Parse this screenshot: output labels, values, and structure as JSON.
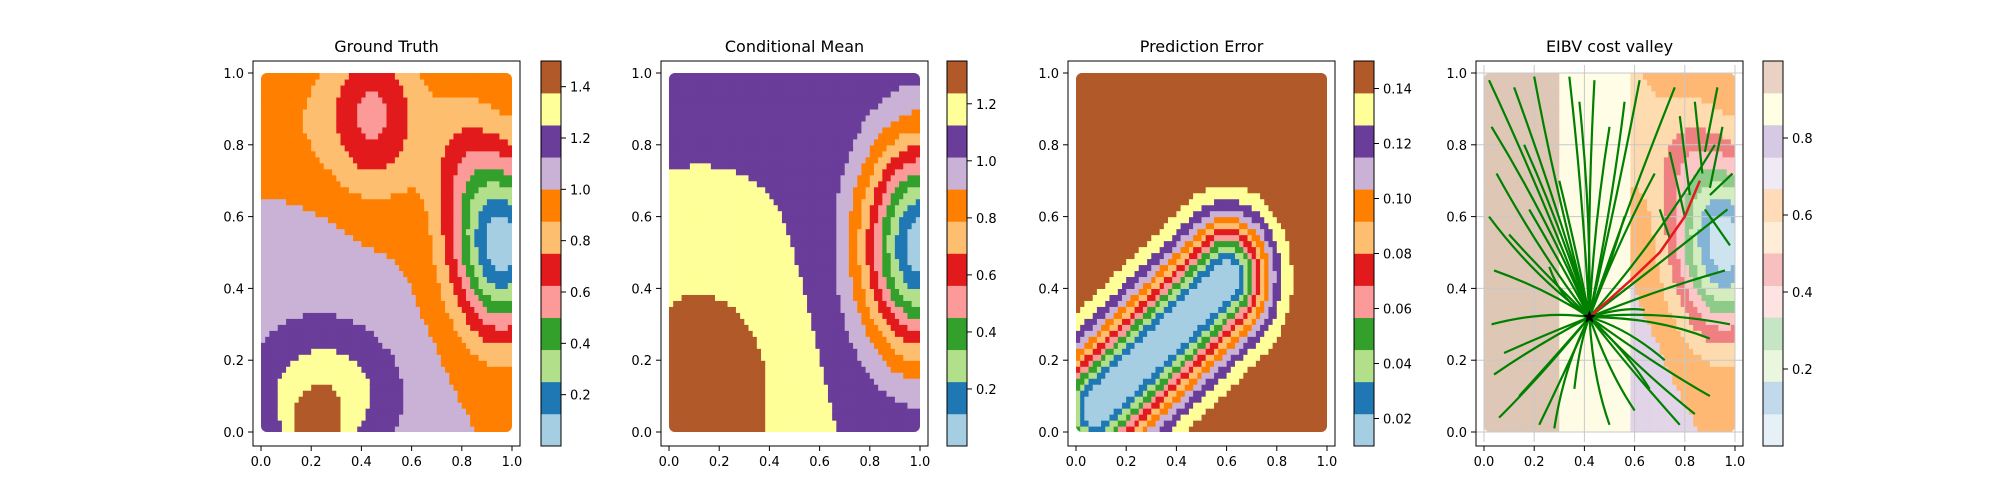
{
  "figure": {
    "background": "#ffffff",
    "palette": [
      "#a6cee3",
      "#1f78b4",
      "#b2df8a",
      "#33a02c",
      "#fb9a99",
      "#e31a1c",
      "#fdbf6f",
      "#ff7f00",
      "#cab2d6",
      "#6a3d9a",
      "#ffff99",
      "#b15928"
    ]
  },
  "chart_data": [
    {
      "type": "heatmap",
      "title": "Ground Truth",
      "xlim": [
        0,
        1
      ],
      "ylim": [
        0,
        1
      ],
      "xticks": [
        "0.0",
        "0.2",
        "0.4",
        "0.6",
        "0.8",
        "1.0"
      ],
      "yticks": [
        "0.0",
        "0.2",
        "0.4",
        "0.6",
        "0.8",
        "1.0"
      ],
      "grid": false,
      "colorbar": {
        "min": 0.0,
        "max": 1.5,
        "ticks": [
          "0.2",
          "0.4",
          "0.6",
          "0.8",
          "1.0",
          "1.2",
          "1.4"
        ]
      },
      "field": {
        "base": 1.0,
        "bumps": [
          {
            "x": 0.96,
            "y": 0.52,
            "sx": 0.13,
            "sy": 0.17,
            "a": -0.95
          },
          {
            "x": 0.45,
            "y": 0.88,
            "sx": 0.13,
            "sy": 0.16,
            "a": -0.4
          },
          {
            "x": 0.25,
            "y": 0.1,
            "sx": 0.22,
            "sy": 0.14,
            "a": 0.35
          },
          {
            "x": 0.22,
            "y": 0.02,
            "sx": 0.06,
            "sy": 0.05,
            "a": 0.3
          },
          {
            "x": 0.2,
            "y": 0.5,
            "sx": 0.22,
            "sy": 0.22,
            "a": 0.05
          },
          {
            "x": 0.05,
            "y": 0.55,
            "sx": 0.05,
            "sy": 0.05,
            "a": 0.03
          },
          {
            "x": 0.15,
            "y": 0.85,
            "sx": 0.15,
            "sy": 0.15,
            "a": -0.1
          },
          {
            "x": 0.8,
            "y": 0.75,
            "sx": 0.1,
            "sy": 0.15,
            "a": -0.2
          }
        ]
      }
    },
    {
      "type": "heatmap",
      "title": "Conditional Mean",
      "xlim": [
        0,
        1
      ],
      "ylim": [
        0,
        1
      ],
      "xticks": [
        "0.0",
        "0.2",
        "0.4",
        "0.6",
        "0.8",
        "1.0"
      ],
      "yticks": [
        "0.0",
        "0.2",
        "0.4",
        "0.6",
        "0.8",
        "1.0"
      ],
      "grid": false,
      "colorbar": {
        "min": 0.0,
        "max": 1.35,
        "ticks": [
          "0.2",
          "0.4",
          "0.6",
          "0.8",
          "1.0",
          "1.2"
        ]
      },
      "field": {
        "base": 1.12,
        "bumps": [
          {
            "x": 1.0,
            "y": 0.52,
            "sx": 0.16,
            "sy": 0.21,
            "a": -1.07
          },
          {
            "x": 0.12,
            "y": 0.1,
            "sx": 0.22,
            "sy": 0.23,
            "a": 0.25
          }
        ]
      }
    },
    {
      "type": "heatmap",
      "title": "Prediction Error",
      "xlim": [
        0,
        1
      ],
      "ylim": [
        0,
        1
      ],
      "xticks": [
        "0.0",
        "0.2",
        "0.4",
        "0.6",
        "0.8",
        "1.0"
      ],
      "yticks": [
        "0.0",
        "0.2",
        "0.4",
        "0.6",
        "0.8",
        "1.0"
      ],
      "grid": false,
      "colorbar": {
        "min": 0.01,
        "max": 0.15,
        "ticks": [
          "0.02",
          "0.04",
          "0.06",
          "0.08",
          "0.10",
          "0.12",
          "0.14"
        ]
      },
      "field": {
        "base": 0.148,
        "ridge": {
          "x0": 0.08,
          "y0": 0.07,
          "x1": 0.6,
          "y1": 0.43,
          "width": 0.16,
          "depth": 0.14
        }
      }
    },
    {
      "type": "heatmap",
      "title": "EIBV cost valley",
      "xlim": [
        0,
        1
      ],
      "ylim": [
        0,
        1
      ],
      "xticks": [
        "0.0",
        "0.2",
        "0.4",
        "0.6",
        "0.8",
        "1.0"
      ],
      "yticks": [
        "0.0",
        "0.2",
        "0.4",
        "0.6",
        "0.8",
        "1.0"
      ],
      "grid": true,
      "colorbar": {
        "min": 0.0,
        "max": 1.0,
        "ticks": [
          "0.2",
          "0.4",
          "0.6",
          "0.8"
        ]
      },
      "start_point": {
        "x": 0.42,
        "y": 0.32
      },
      "path_colors": {
        "branches": "#008000",
        "route": "#e41a1c",
        "start": "#000000"
      },
      "route": [
        [
          0.42,
          0.32
        ],
        [
          0.58,
          0.42
        ],
        [
          0.7,
          0.5
        ],
        [
          0.8,
          0.6
        ],
        [
          0.86,
          0.7
        ]
      ],
      "branches": [
        [
          0.02,
          0.98
        ],
        [
          0.03,
          0.85
        ],
        [
          0.05,
          0.72
        ],
        [
          0.02,
          0.6
        ],
        [
          0.04,
          0.45
        ],
        [
          0.03,
          0.3
        ],
        [
          0.04,
          0.16
        ],
        [
          0.06,
          0.04
        ],
        [
          0.12,
          0.96
        ],
        [
          0.16,
          0.8
        ],
        [
          0.2,
          0.99
        ],
        [
          0.1,
          0.55
        ],
        [
          0.18,
          0.62
        ],
        [
          0.22,
          0.02
        ],
        [
          0.28,
          0.01
        ],
        [
          0.34,
          0.99
        ],
        [
          0.38,
          0.92
        ],
        [
          0.44,
          0.98
        ],
        [
          0.5,
          0.85
        ],
        [
          0.56,
          0.92
        ],
        [
          0.62,
          0.98
        ],
        [
          0.5,
          0.02
        ],
        [
          0.6,
          0.06
        ],
        [
          0.66,
          0.12
        ],
        [
          0.72,
          0.2
        ],
        [
          0.78,
          0.02
        ],
        [
          0.84,
          0.05
        ],
        [
          0.9,
          0.1
        ],
        [
          0.96,
          0.45
        ],
        [
          0.98,
          0.3
        ],
        [
          0.97,
          0.62
        ],
        [
          0.92,
          0.8
        ],
        [
          0.76,
          0.96
        ],
        [
          0.68,
          0.72
        ],
        [
          0.9,
          0.26
        ],
        [
          0.14,
          0.1
        ],
        [
          0.26,
          0.46
        ],
        [
          0.56,
          0.6
        ],
        [
          0.64,
          0.34
        ],
        [
          0.36,
          0.12
        ],
        [
          0.08,
          0.22
        ],
        [
          0.3,
          0.7
        ]
      ],
      "subbranches": [
        [
          [
            0.84,
            0.92
          ],
          [
            0.87,
            0.72
          ]
        ],
        [
          [
            0.95,
            0.85
          ],
          [
            0.9,
            0.68
          ]
        ],
        [
          [
            0.78,
            0.88
          ],
          [
            0.82,
            0.66
          ]
        ],
        [
          [
            0.98,
            0.52
          ],
          [
            0.88,
            0.62
          ]
        ],
        [
          [
            0.74,
            0.78
          ],
          [
            0.8,
            0.6
          ]
        ],
        [
          [
            0.93,
            0.96
          ],
          [
            0.88,
            0.78
          ]
        ],
        [
          [
            0.7,
            0.62
          ],
          [
            0.74,
            0.54
          ]
        ],
        [
          [
            0.99,
            0.72
          ],
          [
            0.9,
            0.66
          ]
        ]
      ]
    }
  ]
}
